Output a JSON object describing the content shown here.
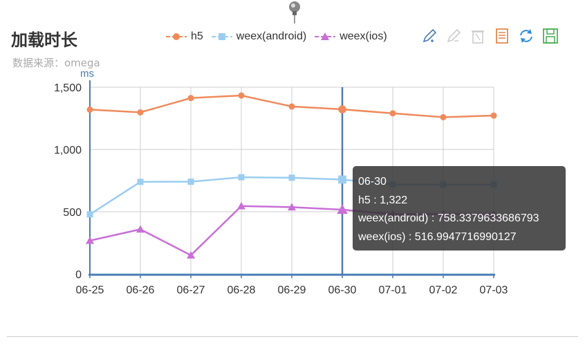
{
  "header": {
    "title": "加载时长",
    "subtitle": "数据来源：omega"
  },
  "toolbox": {
    "icons": [
      "mark-pen-icon",
      "erase-pen-icon",
      "clear-trash-icon",
      "data-view-icon",
      "refresh-icon",
      "save-image-icon"
    ]
  },
  "colors": {
    "h5": "#ef8a5b",
    "android": "#9bcdf0",
    "ios": "#c86fd6",
    "axis": "#4a7bb5",
    "grid": "#cccccc"
  },
  "chart_data": {
    "type": "line",
    "title": "加载时长",
    "subtitle": "数据来源：omega",
    "ylabel": "ms",
    "xlabel": "",
    "categories": [
      "06-25",
      "06-26",
      "06-27",
      "06-28",
      "06-29",
      "06-30",
      "07-01",
      "07-02",
      "07-03"
    ],
    "yticks": [
      "0",
      "500",
      "1,000",
      "1,500"
    ],
    "ylim": [
      0,
      1500
    ],
    "grid": true,
    "legend_position": "top-right",
    "series": [
      {
        "name": "h5",
        "marker": "circle",
        "values": [
          1320,
          1298,
          1413,
          1433,
          1345,
          1322,
          1290,
          1259,
          1272
        ]
      },
      {
        "name": "weex(android)",
        "marker": "square",
        "values": [
          479,
          740,
          741,
          777,
          773,
          758.3379633686793,
          720,
          718,
          718
        ]
      },
      {
        "name": "weex(ios)",
        "marker": "triangle",
        "values": [
          268,
          359,
          151,
          546,
          537,
          516.9947716990127,
          480,
          482,
          480
        ]
      }
    ],
    "highlight_category": "06-30",
    "tooltip": {
      "title": "06-30",
      "lines": [
        "h5 : 1,322",
        "weex(android) : 758.3379633686793",
        "weex(ios) : 516.9947716990127"
      ]
    }
  }
}
